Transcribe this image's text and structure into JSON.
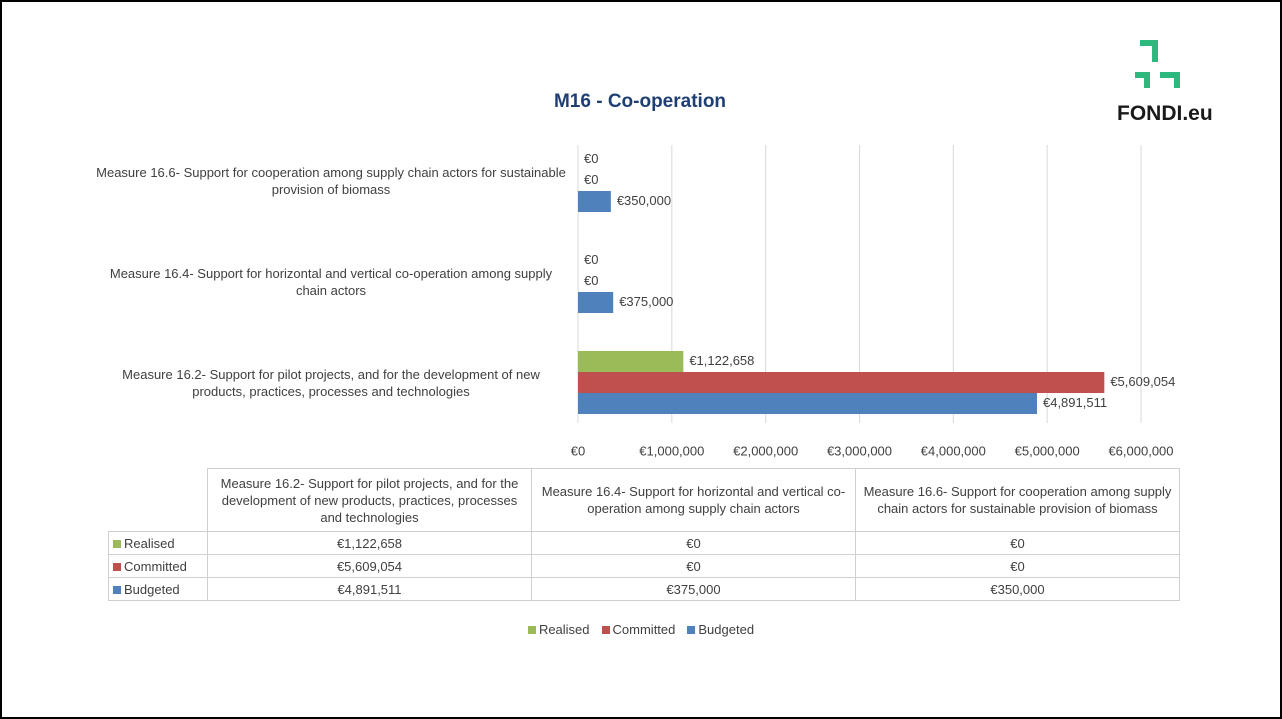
{
  "logo": "FONDI.eu",
  "chart_data": {
    "type": "hbar",
    "title": "M16 - Co-operation",
    "categories": [
      "Measure 16.2- Support for pilot projects, and for the development of new products, practices, processes and technologies",
      "Measure 16.4- Support for horizontal and vertical co-operation among supply chain actors",
      "Measure 16.6- Support for cooperation among supply chain actors for sustainable provision of biomass"
    ],
    "series": [
      {
        "name": "Realised",
        "color": "#9bbb59",
        "values": [
          1122658,
          0,
          0
        ],
        "value_labels": [
          "€1,122,658",
          "€0",
          "€0"
        ]
      },
      {
        "name": "Committed",
        "color": "#c0504d",
        "values": [
          5609054,
          0,
          0
        ],
        "value_labels": [
          "€5,609,054",
          "€0",
          "€0"
        ]
      },
      {
        "name": "Budgeted",
        "color": "#4f81bd",
        "values": [
          4891511,
          375000,
          350000
        ],
        "value_labels": [
          "€4,891,511",
          "€375,000",
          "€350,000"
        ]
      }
    ],
    "xlim": [
      0,
      6000000
    ],
    "xticks": [
      {
        "value": 0,
        "label": "€0"
      },
      {
        "value": 1000000,
        "label": "€1,000,000"
      },
      {
        "value": 2000000,
        "label": "€2,000,000"
      },
      {
        "value": 3000000,
        "label": "€3,000,000"
      },
      {
        "value": 4000000,
        "label": "€4,000,000"
      },
      {
        "value": 5000000,
        "label": "€5,000,000"
      },
      {
        "value": 6000000,
        "label": "€6,000,000"
      }
    ],
    "grid": true,
    "legend": "bottom"
  }
}
